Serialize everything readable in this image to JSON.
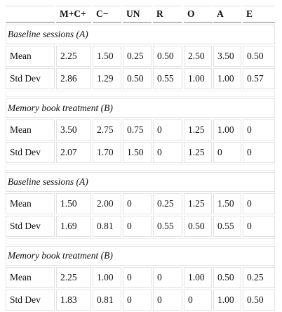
{
  "table": {
    "columns": [
      "M+C+",
      "C−",
      "UN",
      "R",
      "O",
      "A",
      "E"
    ],
    "sections": [
      {
        "title": "Baseline sessions (A)",
        "rows": [
          {
            "label": "Mean",
            "values": [
              "2.25",
              "1.50",
              "0.25",
              "0.50",
              "2.50",
              "3.50",
              "0.50"
            ]
          },
          {
            "label": "Std Dev",
            "values": [
              "2.86",
              "1.29",
              "0.50",
              "0.55",
              "1.00",
              "1.00",
              "0.57"
            ]
          }
        ]
      },
      {
        "title": "Memory book treatment (B)",
        "rows": [
          {
            "label": "Mean",
            "values": [
              "3.50",
              "2.75",
              "0.75",
              "0",
              "1.25",
              "1.00",
              "0"
            ]
          },
          {
            "label": "Std Dev",
            "values": [
              "2.07",
              "1.70",
              "1.50",
              "0",
              "1.25",
              "0",
              "0"
            ]
          }
        ]
      },
      {
        "title": "Baseline sessions (A)",
        "rows": [
          {
            "label": "Mean",
            "values": [
              "1.50",
              "2.00",
              "0",
              "0.25",
              "1.25",
              "1.50",
              "0"
            ]
          },
          {
            "label": "Std Dev",
            "values": [
              "1.69",
              "0.81",
              "0",
              "0.55",
              "0.50",
              "0.55",
              "0"
            ]
          }
        ]
      },
      {
        "title": "Memory book treatment (B)",
        "rows": [
          {
            "label": "Mean",
            "values": [
              "2.25",
              "1.00",
              "0",
              "0",
              "1.00",
              "0.50",
              "0.25"
            ]
          },
          {
            "label": "Std Dev",
            "values": [
              "1.83",
              "0.81",
              "0",
              "0",
              "0",
              "1.00",
              "0.50"
            ]
          }
        ]
      }
    ]
  }
}
